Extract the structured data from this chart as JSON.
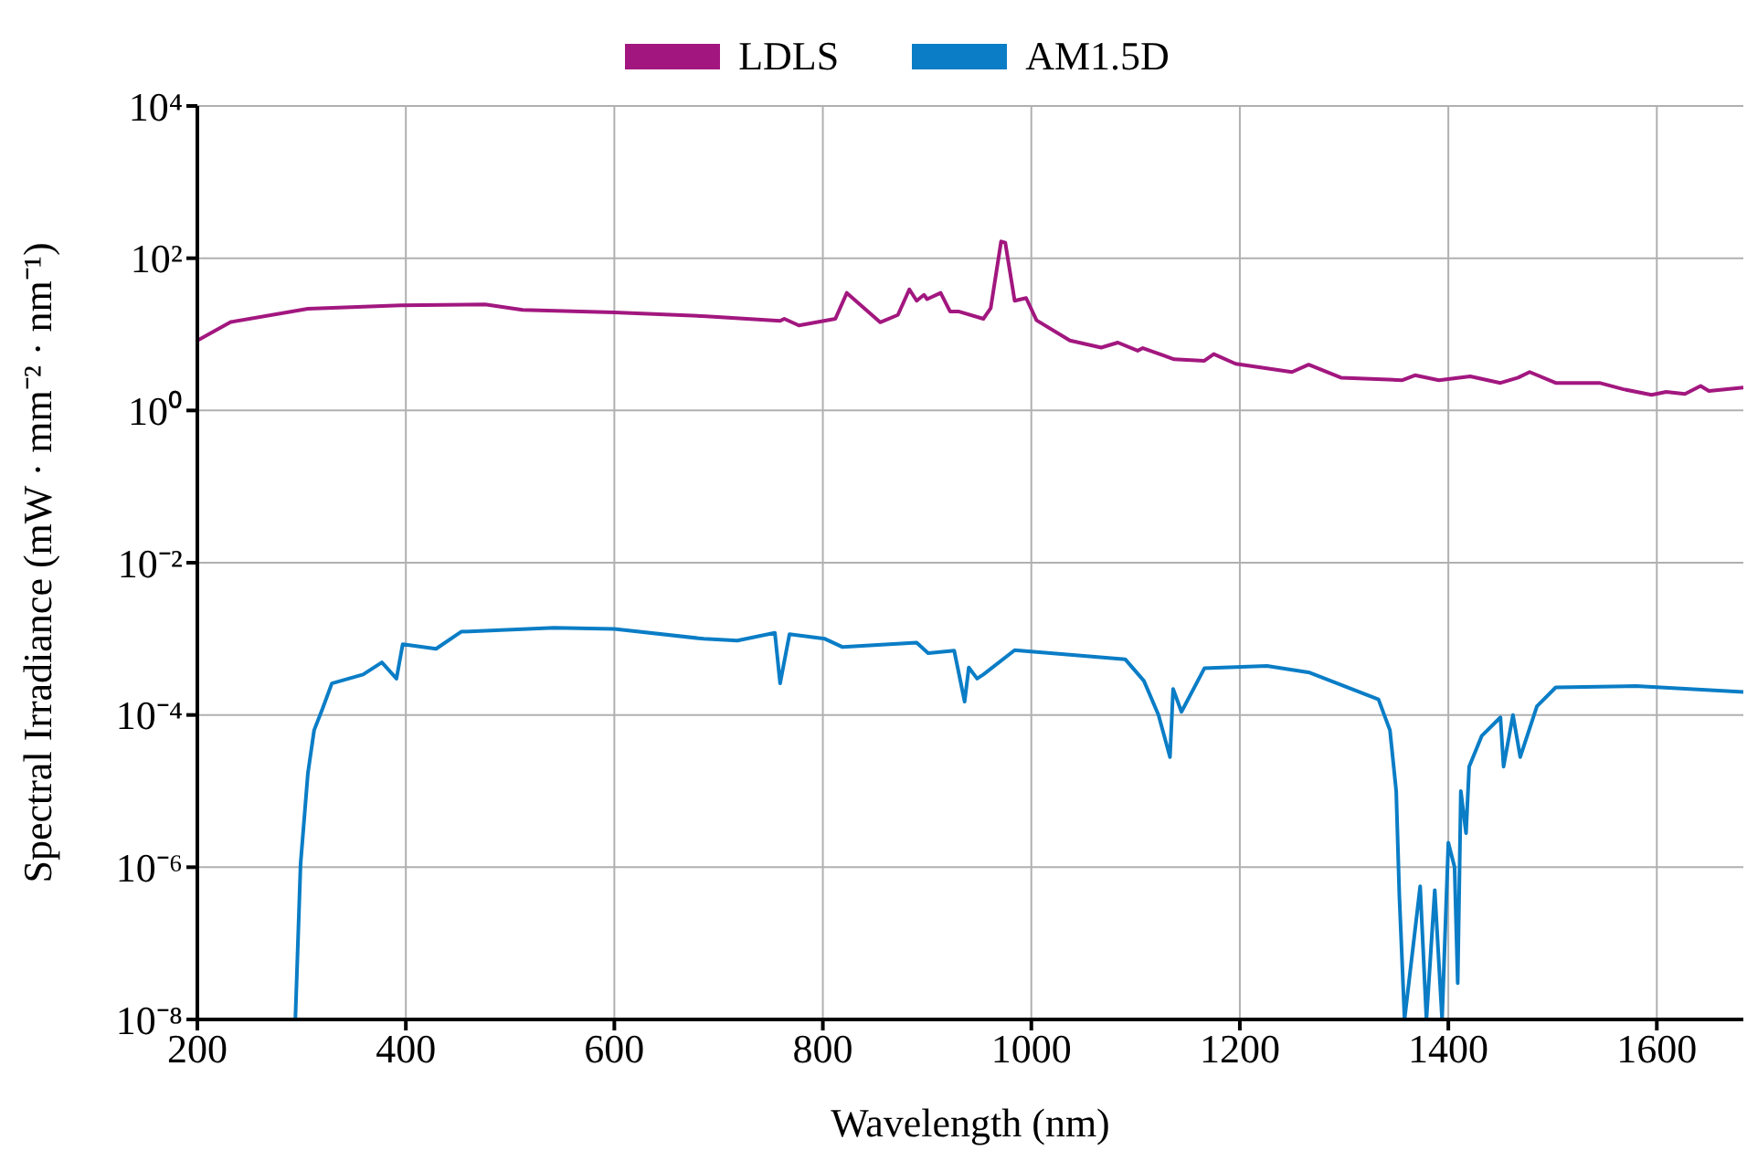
{
  "chart_data": {
    "type": "line",
    "xlabel": "Wavelength (nm)",
    "ylabel": "Spectral Irradiance (mW · mm⁻² · nm⁻¹)",
    "log": "y",
    "grid": true,
    "legend": "top",
    "line_style": "solid",
    "marker": "none",
    "xlim": [
      200,
      1683
    ],
    "xticks": [
      200,
      400,
      600,
      800,
      1000,
      1200,
      1400,
      1600
    ],
    "ylim": [
      1e-08,
      10000
    ],
    "yticks": [
      {
        "value": 1e-08,
        "label": "10⁻⁸"
      },
      {
        "value": 1e-06,
        "label": "10⁻⁶"
      },
      {
        "value": 0.0001,
        "label": "10⁻⁴"
      },
      {
        "value": 0.01,
        "label": "10⁻²"
      },
      {
        "value": 1,
        "label": "10⁰"
      },
      {
        "value": 100,
        "label": "10²"
      },
      {
        "value": 10000,
        "label": "10⁴"
      }
    ],
    "series": [
      {
        "name": "LDLS",
        "color": "#a2177f",
        "x": [
          200,
          232,
          306,
          395,
          476,
          512,
          600,
          688,
          759,
          763,
          777,
          812,
          823,
          855,
          872,
          883,
          890,
          897,
          900,
          913,
          922,
          930,
          954,
          961,
          971,
          975,
          984,
          995,
          1005,
          1037,
          1067,
          1083,
          1102,
          1107,
          1137,
          1166,
          1175,
          1196,
          1250,
          1266,
          1297,
          1356,
          1368,
          1391,
          1421,
          1450,
          1467,
          1478,
          1503,
          1545,
          1568,
          1595,
          1609,
          1627,
          1642,
          1650,
          1683
        ],
        "values": [
          8.3,
          14.5,
          21.7,
          24,
          24.7,
          21,
          19.4,
          17.3,
          15,
          16,
          13.1,
          16,
          35,
          14.4,
          18,
          39,
          27.6,
          33,
          29,
          35,
          20,
          20,
          16,
          22,
          166,
          160,
          27.6,
          30,
          15.3,
          8.3,
          6.7,
          7.8,
          6.1,
          6.6,
          4.7,
          4.5,
          5.5,
          4.1,
          3.2,
          4.0,
          2.7,
          2.5,
          2.9,
          2.5,
          2.8,
          2.3,
          2.7,
          3.2,
          2.3,
          2.3,
          1.9,
          1.6,
          1.75,
          1.65,
          2.1,
          1.8,
          2.0
        ]
      },
      {
        "name": "AM1.5D",
        "color": "#0a7dc6",
        "x": [
          294,
          299,
          306,
          312,
          320,
          329,
          359,
          377,
          391,
          397,
          429,
          453,
          542,
          600,
          686,
          718,
          754,
          759,
          768,
          802,
          819,
          890,
          901,
          926,
          936,
          940,
          948,
          954,
          984,
          1090,
          1108,
          1122,
          1133,
          1136,
          1144,
          1166,
          1226,
          1267,
          1333,
          1344,
          1350,
          1353,
          1358,
          1373,
          1379,
          1387,
          1394,
          1400,
          1406,
          1409,
          1412,
          1417,
          1420,
          1432,
          1450,
          1453,
          1462,
          1469,
          1485,
          1503,
          1580,
          1683
        ],
        "values": [
          1e-08,
          1.1e-06,
          1.7e-05,
          6.3e-05,
          0.00012,
          0.00026,
          0.00034,
          0.00049,
          0.0003,
          0.00085,
          0.00074,
          0.00124,
          0.0014,
          0.00135,
          0.001,
          0.00095,
          0.0012,
          0.00026,
          0.00115,
          0.001,
          0.00078,
          0.00089,
          0.00065,
          0.0007,
          0.00015,
          0.00042,
          0.0003,
          0.00034,
          0.00071,
          0.00054,
          0.00028,
          0.0001,
          2.8e-05,
          0.00022,
          0.00011,
          0.00041,
          0.00044,
          0.00036,
          0.00016,
          6.3e-05,
          1e-05,
          4.3e-07,
          1e-08,
          5.6e-07,
          1e-08,
          5e-07,
          1e-08,
          2.1e-06,
          1e-06,
          3e-08,
          1e-05,
          2.8e-06,
          2.1e-05,
          5.3e-05,
          9.3e-05,
          2.1e-05,
          0.0001,
          2.8e-05,
          0.00013,
          0.00023,
          0.00024,
          0.0002
        ]
      }
    ]
  }
}
